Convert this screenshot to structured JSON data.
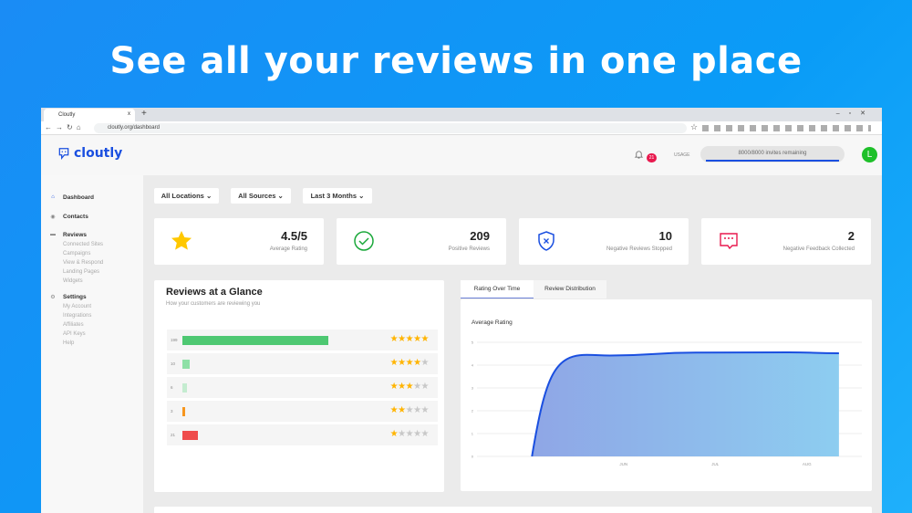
{
  "headline": "See all your reviews in one place",
  "browser": {
    "tab_title": "Cloutly",
    "url": "cloutly.org/dashboard",
    "new_tab": "+",
    "close_tab": "x"
  },
  "app": {
    "logo": "cloutly",
    "notifications": "21",
    "usage_label": "USAGE",
    "usage_text": "8000/8000 invites remaining",
    "usage_fraction": 1.0,
    "avatar": "L"
  },
  "sidebar": {
    "items": [
      {
        "label": "Dashboard",
        "icon": "home-icon",
        "active": true
      },
      {
        "label": "Contacts",
        "icon": "contacts-icon"
      },
      {
        "label": "Reviews",
        "icon": "chat-icon",
        "sub": [
          "Connected Sites",
          "Campaigns",
          "View & Respond",
          "Landing Pages",
          "Widgets"
        ]
      },
      {
        "label": "Settings",
        "icon": "gear-icon",
        "sub": [
          "My Account",
          "Integrations",
          "Affiliates",
          "API Keys",
          "Help"
        ]
      }
    ]
  },
  "filters": [
    "All Locations",
    "All Sources",
    "Last 3 Months"
  ],
  "stats": [
    {
      "value": "4.5/5",
      "label": "Average Rating",
      "icon": "star-icon",
      "color": "#ffc800"
    },
    {
      "value": "209",
      "label": "Positive Reviews",
      "icon": "check-circle-icon",
      "color": "#1aa83a"
    },
    {
      "value": "10",
      "label": "Negative Reviews Stopped",
      "icon": "shield-x-icon",
      "color": "#1a4fe0"
    },
    {
      "value": "2",
      "label": "Negative Feedback Collected",
      "icon": "feedback-icon",
      "color": "#e8194e"
    }
  ],
  "glance": {
    "title": "Reviews at a Glance",
    "subtitle": "How your customers are reviewing you",
    "rows": [
      {
        "count": 199,
        "stars": 5,
        "color": "#4ec872"
      },
      {
        "count": 10,
        "stars": 4,
        "color": "#8ee0a6"
      },
      {
        "count": 6,
        "stars": 3,
        "color": "#c4ecd0"
      },
      {
        "count": 3,
        "stars": 2,
        "color": "#f7961e"
      },
      {
        "count": 21,
        "stars": 1,
        "color": "#ef4b4b"
      }
    ]
  },
  "chart_tabs": [
    "Rating Over Time",
    "Review Distribution"
  ],
  "chart_data": {
    "type": "area",
    "title": "Average Rating",
    "ylim": [
      0,
      5
    ],
    "yticks": [
      "0",
      "1",
      "2",
      "3",
      "4",
      "5"
    ],
    "xticks": [
      "JUN",
      "JUL",
      "AUG"
    ],
    "points": [
      [
        0,
        0
      ],
      [
        0.6,
        4.45
      ],
      [
        0.85,
        4.42
      ],
      [
        1.8,
        4.55
      ],
      [
        2.8,
        4.56
      ],
      [
        3.35,
        4.52
      ]
    ],
    "grid": true,
    "line_color": "#1a4fe0"
  }
}
